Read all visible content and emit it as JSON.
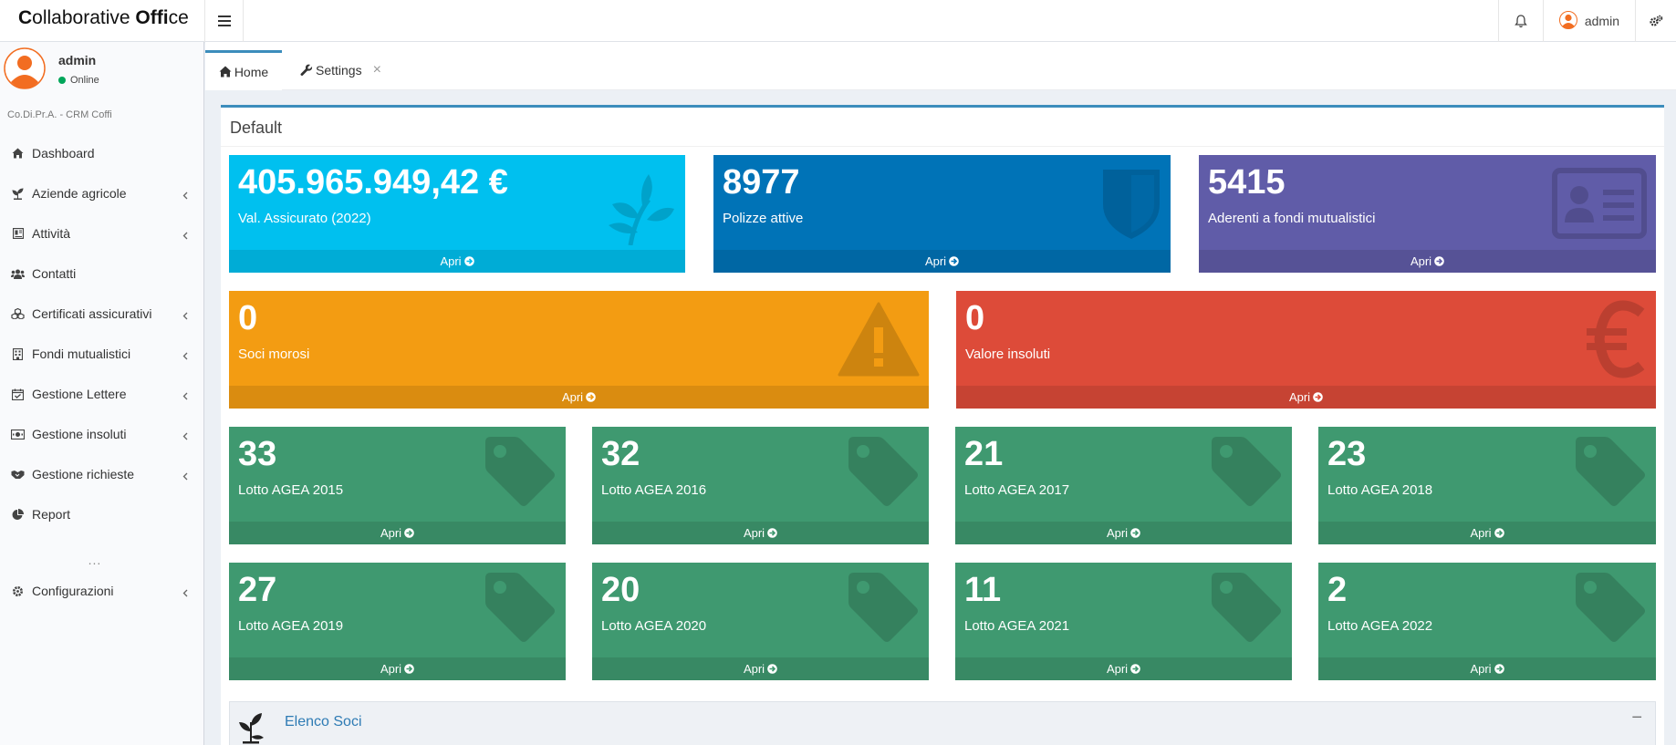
{
  "header": {
    "brand_c": "C",
    "brand_rest1": "ollaborative ",
    "brand_offi": "Offi",
    "brand_rest2": "ce",
    "user_label": "admin"
  },
  "sidebar": {
    "user_name": "admin",
    "user_status": "Online",
    "company": "Co.Di.Pr.A. - CRM Coffi",
    "items": [
      {
        "label": "Dashboard",
        "icon": "home-icon",
        "has_children": false
      },
      {
        "label": "Aziende agricole",
        "icon": "seedling-icon",
        "has_children": true
      },
      {
        "label": "Attività",
        "icon": "book-icon",
        "has_children": true
      },
      {
        "label": "Contatti",
        "icon": "users-icon",
        "has_children": false
      },
      {
        "label": "Certificati assicurativi",
        "icon": "cubes-icon",
        "has_children": true
      },
      {
        "label": "Fondi mutualistici",
        "icon": "building-icon",
        "has_children": true
      },
      {
        "label": "Gestione Lettere",
        "icon": "calendar-check-icon",
        "has_children": true
      },
      {
        "label": "Gestione insoluti",
        "icon": "money-icon",
        "has_children": true
      },
      {
        "label": "Gestione richieste",
        "icon": "handshake-icon",
        "has_children": true
      },
      {
        "label": "Report",
        "icon": "pie-chart-icon",
        "has_children": false
      }
    ],
    "more": "...",
    "config_label": "Configurazioni"
  },
  "tabs": {
    "home": "Home",
    "settings": "Settings",
    "close": "×"
  },
  "box": {
    "title": "Default",
    "open_label": "Apri",
    "cards_top": [
      {
        "value": "405.965.949,42 €",
        "label": "Val. Assicurato (2022)",
        "color": "#00c0ef",
        "icon": "leaf-icon"
      },
      {
        "value": "8977",
        "label": "Polizze attive",
        "color": "#0073b7",
        "icon": "shield-icon"
      },
      {
        "value": "5415",
        "label": "Aderenti a fondi mutualistici",
        "color": "#605ca8",
        "icon": "id-card-icon"
      }
    ],
    "cards_mid": [
      {
        "value": "0",
        "label": "Soci morosi",
        "color": "#f39c12",
        "icon": "warning-icon"
      },
      {
        "value": "0",
        "label": "Valore insoluti",
        "color": "#dd4b39",
        "icon": "euro-icon"
      }
    ],
    "cards_lots": [
      {
        "value": "33",
        "label": "Lotto AGEA 2015"
      },
      {
        "value": "32",
        "label": "Lotto AGEA 2016"
      },
      {
        "value": "21",
        "label": "Lotto AGEA 2017"
      },
      {
        "value": "23",
        "label": "Lotto AGEA 2018"
      },
      {
        "value": "27",
        "label": "Lotto AGEA 2019"
      },
      {
        "value": "20",
        "label": "Lotto AGEA 2020"
      },
      {
        "value": "11",
        "label": "Lotto AGEA 2021"
      },
      {
        "value": "2",
        "label": "Lotto AGEA 2022"
      }
    ],
    "lot_color": "#3f9970",
    "soci_title": "Elenco Soci",
    "soci_collapse": "−"
  }
}
